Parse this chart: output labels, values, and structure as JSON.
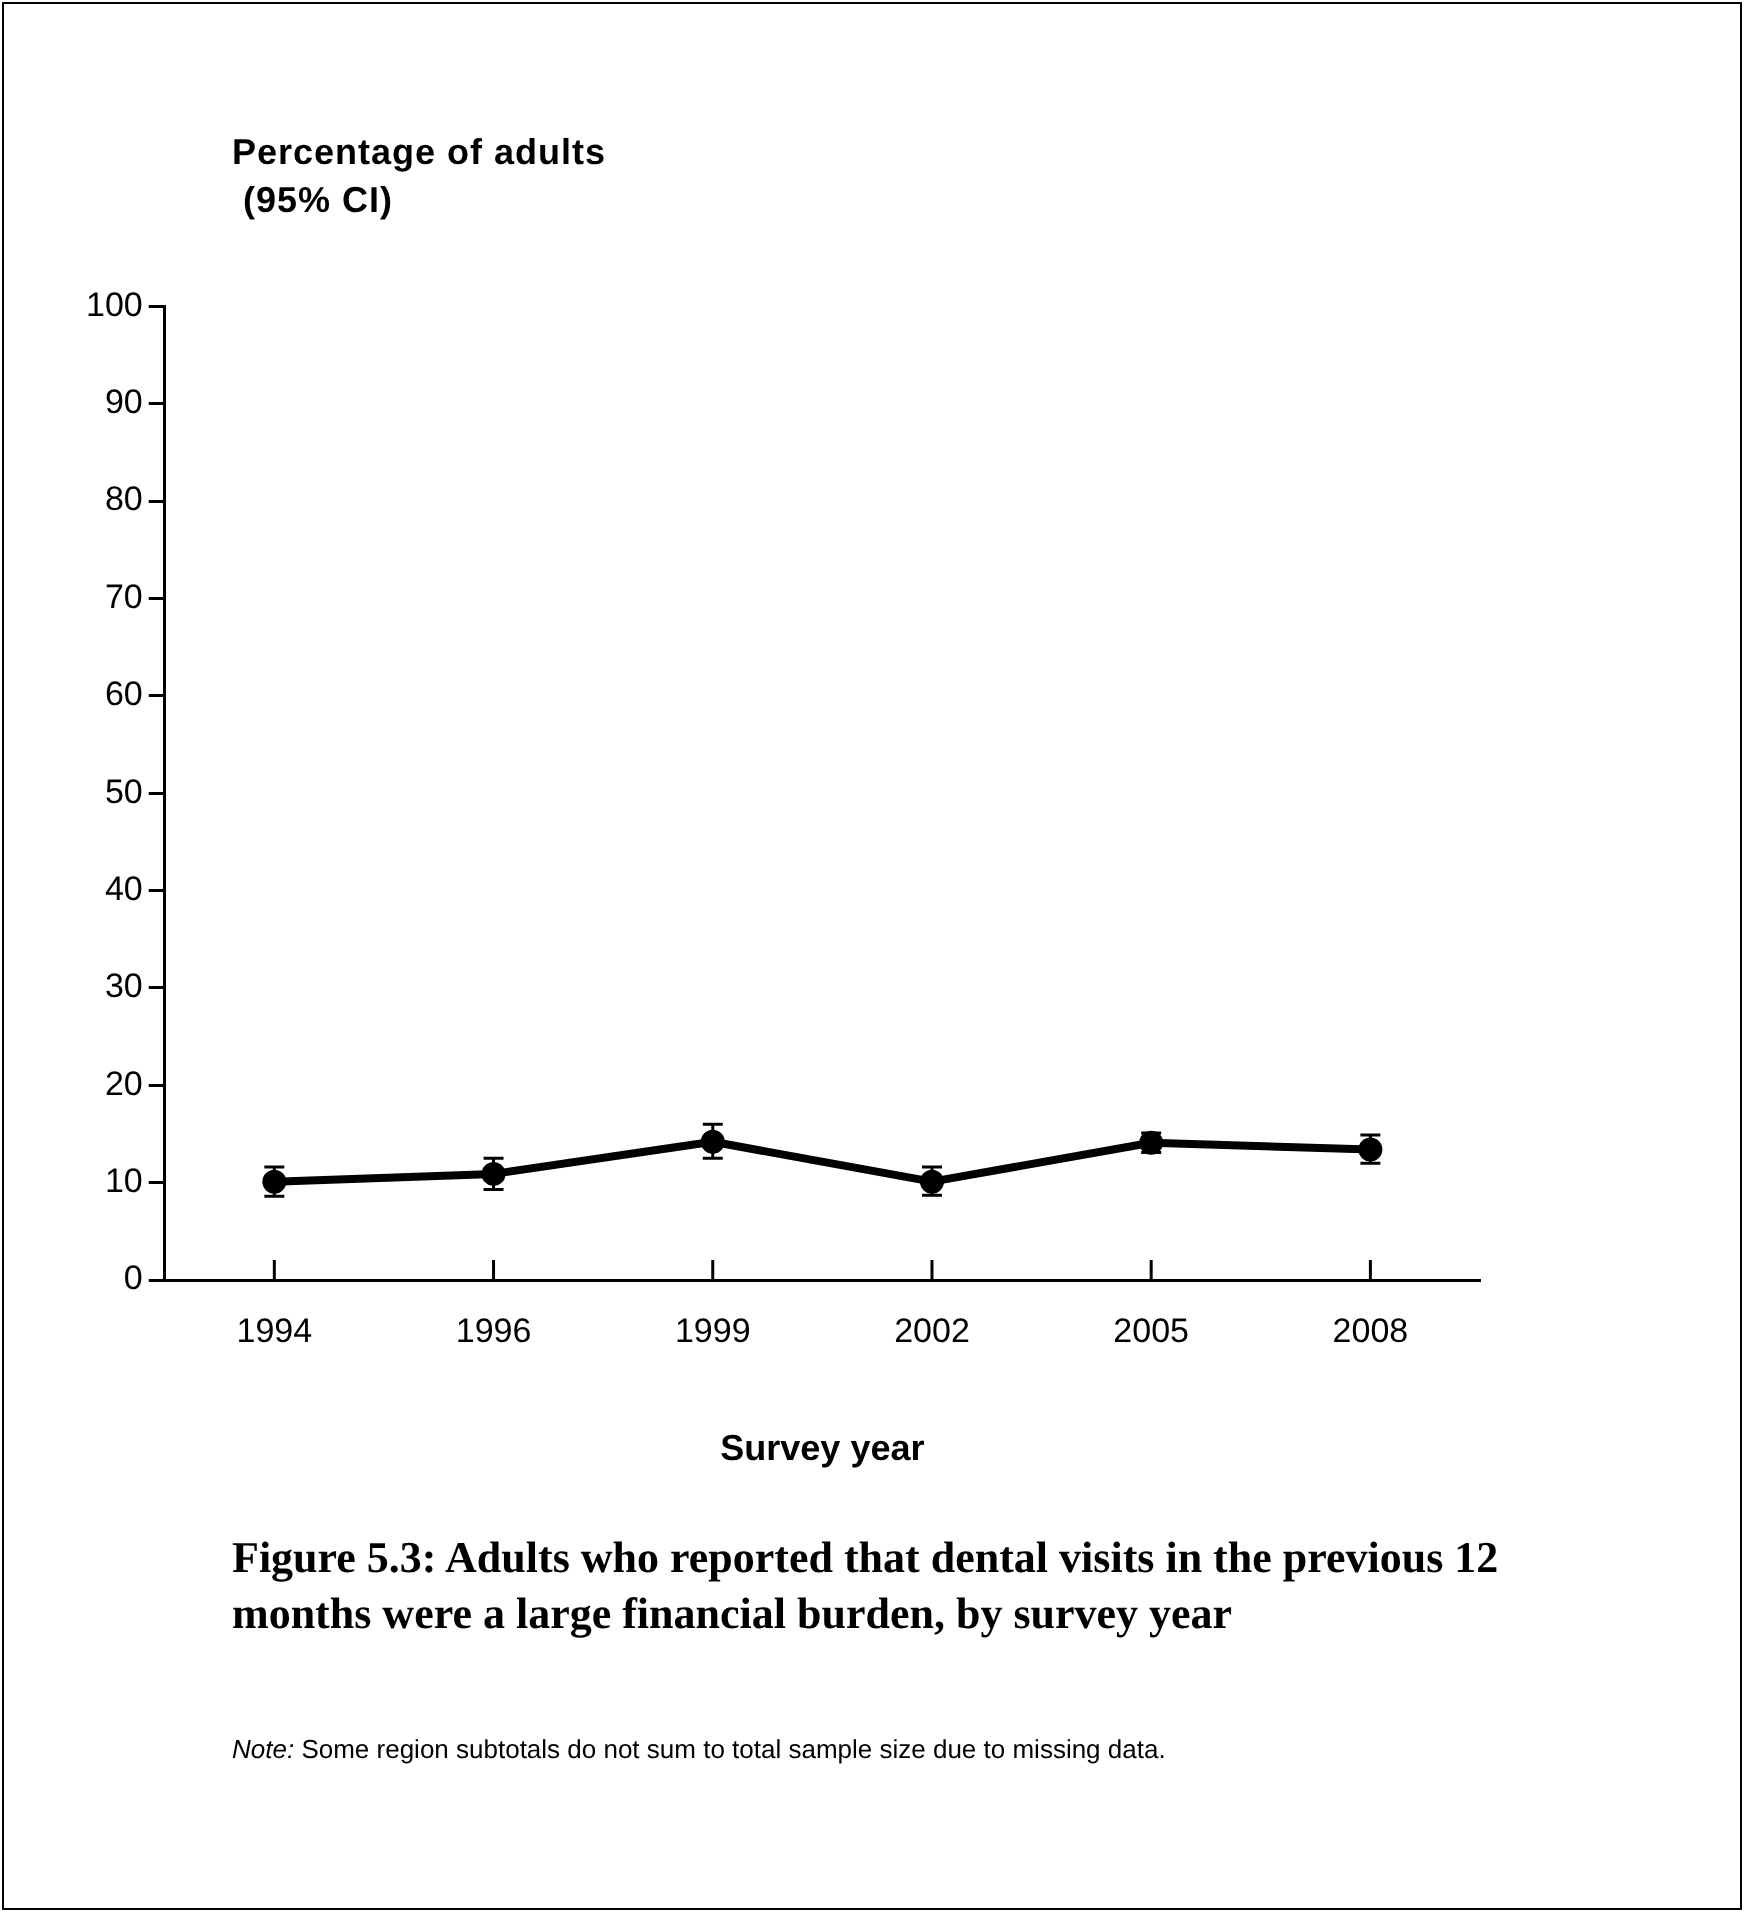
{
  "chart_data": {
    "type": "line",
    "title": "Figure 5.3: Adults who reported that dental visits in the previous 12 months were a large financial burden, by survey year",
    "ylabel": "Percentage of adults\n (95% CI)",
    "xlabel": "Survey year",
    "categories": [
      "1994",
      "1996",
      "1999",
      "2002",
      "2005",
      "2008"
    ],
    "series": [
      {
        "color": "#000000",
        "values": [
          10.1,
          10.9,
          14.2,
          10.1,
          14.1,
          13.4
        ],
        "errors": [
          [
            8.6,
            11.6
          ],
          [
            9.3,
            12.5
          ],
          [
            12.5,
            16.0
          ],
          [
            8.7,
            11.6
          ],
          [
            13.1,
            15.1
          ],
          [
            12.0,
            14.9
          ]
        ]
      }
    ],
    "ylim": [
      0,
      100
    ],
    "yticks": [
      0,
      10,
      20,
      30,
      40,
      50,
      60,
      70,
      80,
      90,
      100
    ],
    "grid": false,
    "legend": false,
    "marker": "circle",
    "line_style": "solid",
    "annotations": [
      "Note: Some region subtotals do not sum to total sample size due to missing data."
    ]
  }
}
